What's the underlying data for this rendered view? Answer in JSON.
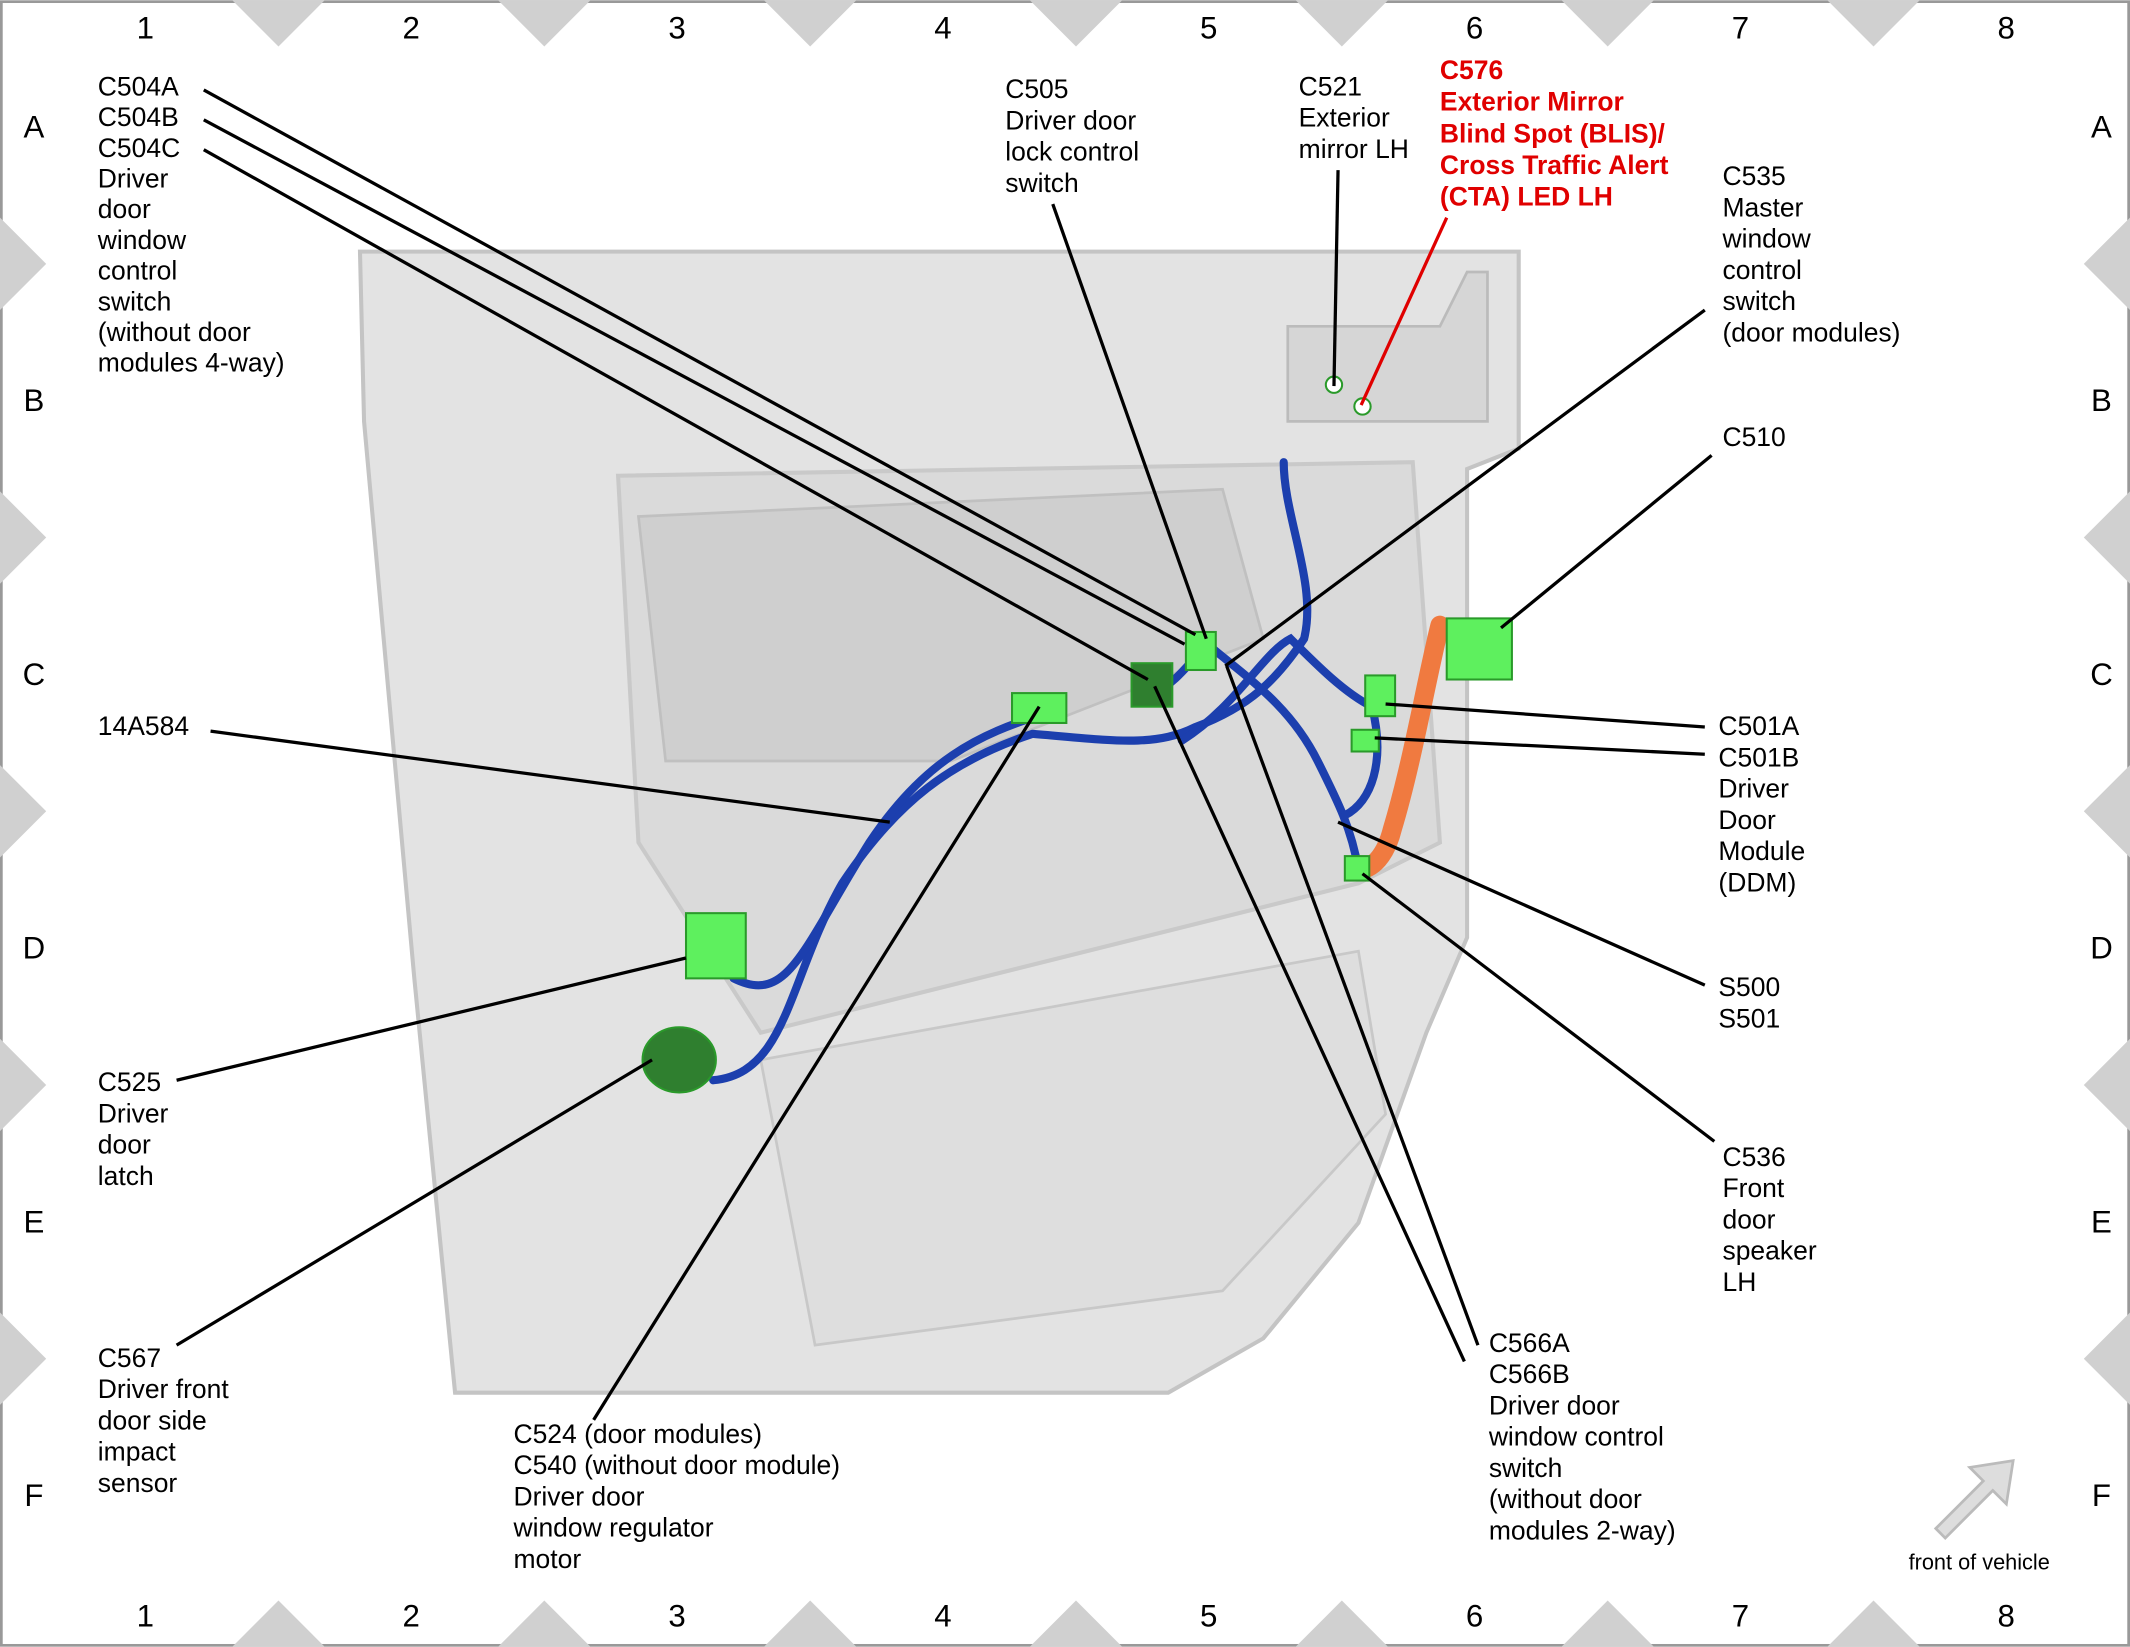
{
  "grid": {
    "columns": [
      "1",
      "2",
      "3",
      "4",
      "5",
      "6",
      "7",
      "8"
    ],
    "rows": [
      "A",
      "B",
      "C",
      "D",
      "E",
      "F"
    ]
  },
  "callouts": [
    {
      "lines": [
        "C504A",
        "C504B",
        "C504C",
        "Driver",
        "door",
        "window",
        "control",
        "switch",
        "(without door",
        "modules 4-way)"
      ]
    },
    {
      "lines": [
        "C505",
        "Driver door",
        "lock control",
        "switch"
      ]
    },
    {
      "lines": [
        "C521",
        "Exterior",
        "mirror LH"
      ]
    },
    {
      "lines": [
        "C576",
        "Exterior Mirror",
        "Blind Spot (BLIS)/",
        "Cross Traffic Alert",
        "(CTA) LED LH"
      ]
    },
    {
      "lines": [
        "C535",
        "Master",
        "window",
        "control",
        "switch",
        "(door modules)"
      ]
    },
    {
      "lines": [
        "C510"
      ]
    },
    {
      "lines": [
        "C501A",
        "C501B",
        "Driver",
        "Door",
        "Module",
        "(DDM)"
      ]
    },
    {
      "lines": [
        "S500",
        "S501"
      ]
    },
    {
      "lines": [
        "C536",
        "Front",
        "door",
        "speaker",
        "LH"
      ]
    },
    {
      "lines": [
        "C566A",
        "C566B",
        "Driver door",
        "window control",
        "switch",
        "(without door",
        "modules 2-way)"
      ]
    },
    {
      "lines": [
        "14A584"
      ]
    },
    {
      "lines": [
        "C525",
        "Driver",
        "door",
        "latch"
      ]
    },
    {
      "lines": [
        "C567",
        "Driver front",
        "door side",
        "impact",
        "sensor"
      ]
    },
    {
      "lines": [
        "C524 (door modules)",
        "C540 (without door module)",
        "Driver door",
        "window regulator",
        "motor"
      ]
    }
  ],
  "footer": {
    "direction": "front of vehicle"
  }
}
